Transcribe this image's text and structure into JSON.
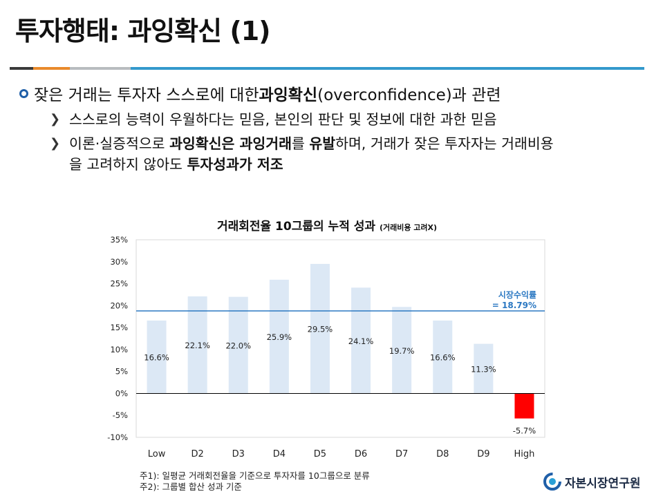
{
  "title": "투자행태: 과잉확신 (1)",
  "main_bullet": {
    "pre": "잦은 거래는 투자자 스스로에 대한 ",
    "bold": "과잉확신",
    "post": "(overconfidence)과 관련"
  },
  "sub1": "스스로의 능력이 우월하다는 믿음, 본인의 판단 및 정보에 대한 과한 믿음",
  "sub2": {
    "p1": "이론·실증적으로 ",
    "b1": "과잉확신은 과잉거래",
    "p2": "를 ",
    "b2": "유발",
    "p3": "하며, 거래가 잦은 투자자는 거래비용",
    "line2_pre": "을 고려하지 않아도 ",
    "b3": "투자성과가 저조"
  },
  "chart_title": "거래회전율 10그룹의 누적 성과",
  "chart_title_note": "(거래비용 고려X)",
  "market_label_1": "시장수익률",
  "market_label_2": "=  18.79%",
  "footnote1": "주1): 일평균 거래회전율을 기준으로 투자자를 10그룹으로 분류",
  "footnote2": "주2): 그룹별 합산 성과 기준",
  "logo_text": "자본시장연구원",
  "colors": {
    "bar": "#dce8f5",
    "negative_bar": "#ff0000",
    "market_line": "#2b78c2",
    "accent_blue": "#3399cc",
    "accent_orange": "#e98a2b"
  },
  "chart_data": {
    "type": "bar",
    "categories": [
      "Low",
      "D2",
      "D3",
      "D4",
      "D5",
      "D6",
      "D7",
      "D8",
      "D9",
      "High"
    ],
    "values": [
      16.6,
      22.1,
      22.0,
      25.9,
      29.5,
      24.1,
      19.7,
      16.6,
      11.3,
      -5.7
    ],
    "value_labels": [
      "16.6%",
      "22.1%",
      "22.0%",
      "25.9%",
      "29.5%",
      "24.1%",
      "19.7%",
      "16.6%",
      "11.3%",
      "-5.7%"
    ],
    "ylim": [
      -10,
      35
    ],
    "yticks": [
      35,
      30,
      25,
      20,
      15,
      10,
      5,
      0,
      -5,
      -10
    ],
    "ytick_labels": [
      "35%",
      "30%",
      "25%",
      "20%",
      "15%",
      "10%",
      "5%",
      "0%",
      "-5%",
      "-10%"
    ],
    "reference_line": 18.79,
    "grid": false
  }
}
